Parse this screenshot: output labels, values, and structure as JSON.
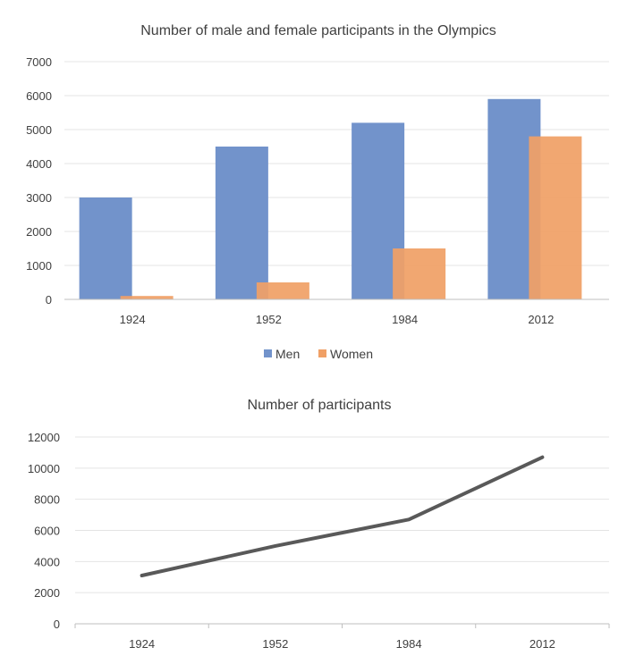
{
  "chart_data": [
    {
      "type": "bar",
      "title": "Number of male and female participants in the Olympics",
      "categories": [
        "1924",
        "1952",
        "1984",
        "2012"
      ],
      "series": [
        {
          "name": "Men",
          "values": [
            3000,
            4500,
            5200,
            5900
          ],
          "color": "#7293cb"
        },
        {
          "name": "Women",
          "values": [
            100,
            500,
            1500,
            4800
          ],
          "color": "#f0a066"
        }
      ],
      "ylim": [
        0,
        7000
      ],
      "yticks": [
        "0",
        "1000",
        "2000",
        "3000",
        "4000",
        "5000",
        "6000",
        "7000"
      ],
      "grid": true,
      "legend": "bottom"
    },
    {
      "type": "line",
      "title": "Number of participants",
      "categories": [
        "1924",
        "1952",
        "1984",
        "2012"
      ],
      "series": [
        {
          "values": [
            3100,
            5000,
            6700,
            10700
          ],
          "color": "#595959"
        }
      ],
      "ylim": [
        0,
        12000
      ],
      "yticks": [
        "0",
        "2000",
        "4000",
        "6000",
        "8000",
        "10000",
        "12000"
      ],
      "grid": true,
      "legend": "none"
    }
  ]
}
